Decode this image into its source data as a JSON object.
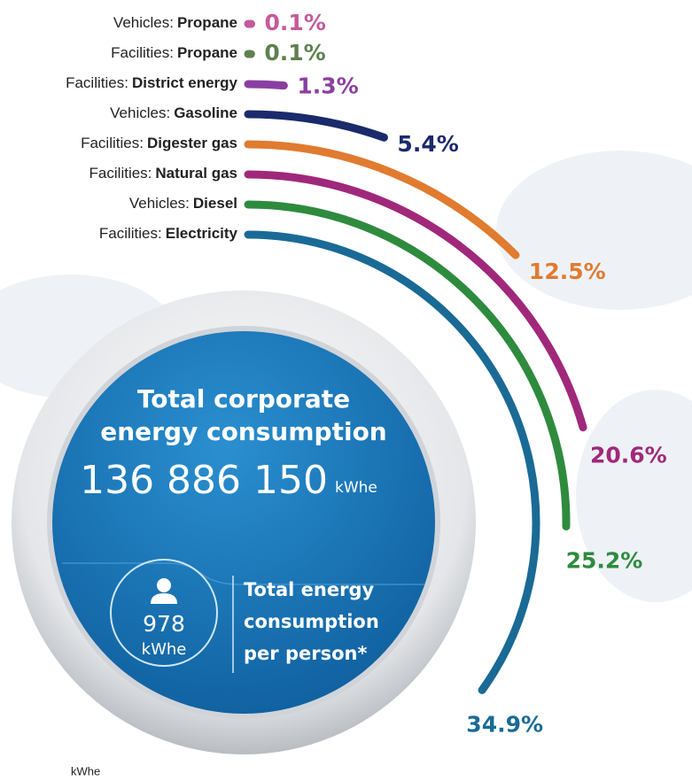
{
  "chart_data": {
    "type": "radial_bar",
    "categories": [
      {
        "group": "Vehicles:",
        "name": "Propane"
      },
      {
        "group": "Facilities:",
        "name": "Propane"
      },
      {
        "group": "Facilities:",
        "name": "District energy"
      },
      {
        "group": "Vehicles:",
        "name": "Gasoline"
      },
      {
        "group": "Facilities:",
        "name": "Digester gas"
      },
      {
        "group": "Facilities:",
        "name": "Natural gas"
      },
      {
        "group": "Vehicles:",
        "name": "Diesel"
      },
      {
        "group": "Facilities:",
        "name": "Electricity"
      }
    ],
    "values": [
      0.1,
      0.1,
      1.3,
      5.4,
      12.5,
      20.6,
      25.2,
      34.9
    ],
    "value_labels": [
      "0.1%",
      "0.1%",
      "1.3%",
      "5.4%",
      "12.5%",
      "20.6%",
      "25.2%",
      "34.9%"
    ],
    "colors": [
      "#c45a9a",
      "#5e8050",
      "#8a3fa0",
      "#1b2a6b",
      "#e07b30",
      "#a0287a",
      "#2e8b3e",
      "#1a6a96"
    ],
    "center_title": [
      "Total corporate",
      "energy consumption"
    ],
    "total": "136 886 150",
    "total_unit": "kWhe",
    "per_person": "978",
    "per_person_unit": "kWhe",
    "per_person_label": [
      "Total energy",
      "consumption",
      "per person*"
    ],
    "footnote": "kWhe"
  }
}
